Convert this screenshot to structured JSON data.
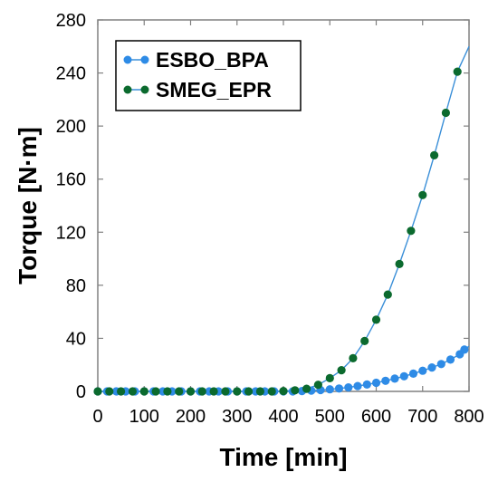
{
  "chart_data": {
    "type": "scatter",
    "title": "",
    "xlabel": "Time [min]",
    "ylabel": "Torque  [N·m]",
    "xlim": [
      0,
      800
    ],
    "ylim": [
      0,
      280
    ],
    "xticks": [
      "0",
      "100",
      "200",
      "300",
      "400",
      "500",
      "600",
      "700",
      "800"
    ],
    "yticks": [
      "0",
      "40",
      "80",
      "120",
      "160",
      "200",
      "240",
      "280"
    ],
    "grid": false,
    "legend_position": "top-left",
    "series": [
      {
        "name": "ESBO_BPA",
        "color": "#2e8be6",
        "line_color": "#3a8fd8",
        "x": [
          0,
          20,
          40,
          60,
          80,
          100,
          120,
          140,
          160,
          180,
          200,
          220,
          240,
          260,
          280,
          300,
          320,
          340,
          360,
          380,
          400,
          420,
          440,
          460,
          480,
          500,
          520,
          540,
          560,
          580,
          600,
          620,
          640,
          660,
          680,
          700,
          720,
          740,
          760,
          780,
          790,
          800
        ],
        "y": [
          0,
          0,
          0,
          0,
          0,
          0,
          0,
          0,
          0,
          0,
          0,
          0,
          0,
          0,
          0,
          0,
          0,
          0,
          0,
          0,
          0,
          0,
          0.3,
          0.6,
          1,
          1.6,
          2.2,
          3,
          4,
          5.2,
          6.5,
          8,
          9.6,
          11.4,
          13.4,
          15.6,
          18,
          20.6,
          24,
          28,
          31.5,
          34
        ]
      },
      {
        "name": "SMEG_EPR",
        "color": "#0b6a2e",
        "line_color": "#3a8fd8",
        "x": [
          0,
          25,
          50,
          75,
          100,
          125,
          150,
          175,
          200,
          225,
          250,
          275,
          300,
          325,
          350,
          375,
          400,
          425,
          450,
          475,
          500,
          525,
          550,
          575,
          600,
          625,
          650,
          675,
          700,
          725,
          750,
          775,
          800
        ],
        "y": [
          0,
          0,
          0,
          0,
          0,
          0,
          0,
          0,
          0,
          0,
          0,
          0,
          0,
          0,
          0,
          0,
          0.3,
          0.8,
          2,
          5,
          10,
          16,
          25,
          38,
          54,
          73,
          96,
          121,
          148,
          178,
          210,
          241,
          260
        ]
      }
    ]
  }
}
